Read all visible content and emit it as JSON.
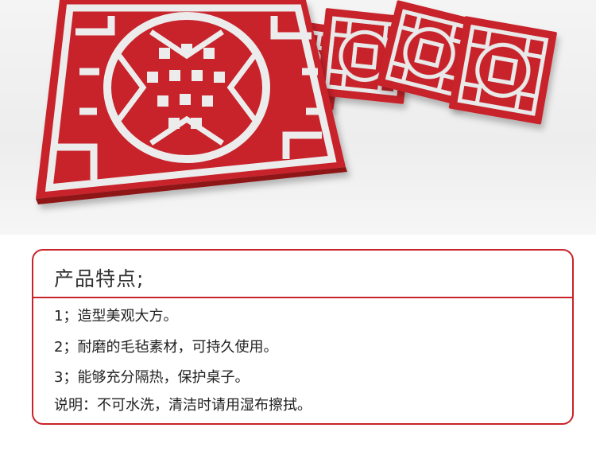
{
  "product": {
    "heading": "产品特点;",
    "features": [
      "1；造型美观大方。",
      "2；耐磨的毛毡素材，可持久使用。",
      "3；能够充分隔热，保护桌子。"
    ],
    "note": "说明：不可水洗，清洁时请用湿布擦拭。"
  },
  "colors": {
    "felt_red": "#c8232a",
    "felt_shadow": "#8e1418",
    "background": "#efefef"
  }
}
